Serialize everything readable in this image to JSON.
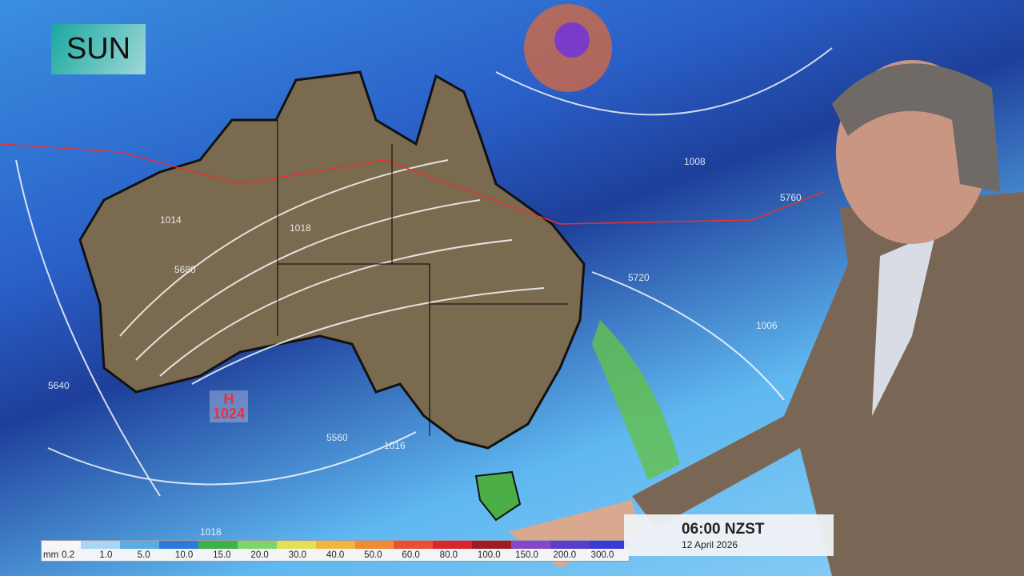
{
  "day_label": "SUN",
  "high_pressure": {
    "symbol": "H",
    "value": "1024"
  },
  "isobar_labels": [
    "1008",
    "1018",
    "1014",
    "1016",
    "5720",
    "5680",
    "5640",
    "5560",
    "1006",
    "5760",
    "1018"
  ],
  "legend": {
    "unit": "mm",
    "values": [
      "0.2",
      "1.0",
      "5.0",
      "10.0",
      "15.0",
      "20.0",
      "30.0",
      "40.0",
      "50.0",
      "60.0",
      "80.0",
      "100.0",
      "150.0",
      "200.0",
      "300.0"
    ],
    "colors": [
      "#f4f6f8",
      "#a9d6f5",
      "#5aace6",
      "#2f78dd",
      "#3bb24a",
      "#7fd36b",
      "#e3e055",
      "#f0b740",
      "#ef8b32",
      "#e8502f",
      "#d8262a",
      "#a01c24",
      "#8a46c8",
      "#5a3cc8",
      "#3a3ad8"
    ]
  },
  "time": {
    "value": "06:00 NZST",
    "date": "12 April 2026"
  }
}
